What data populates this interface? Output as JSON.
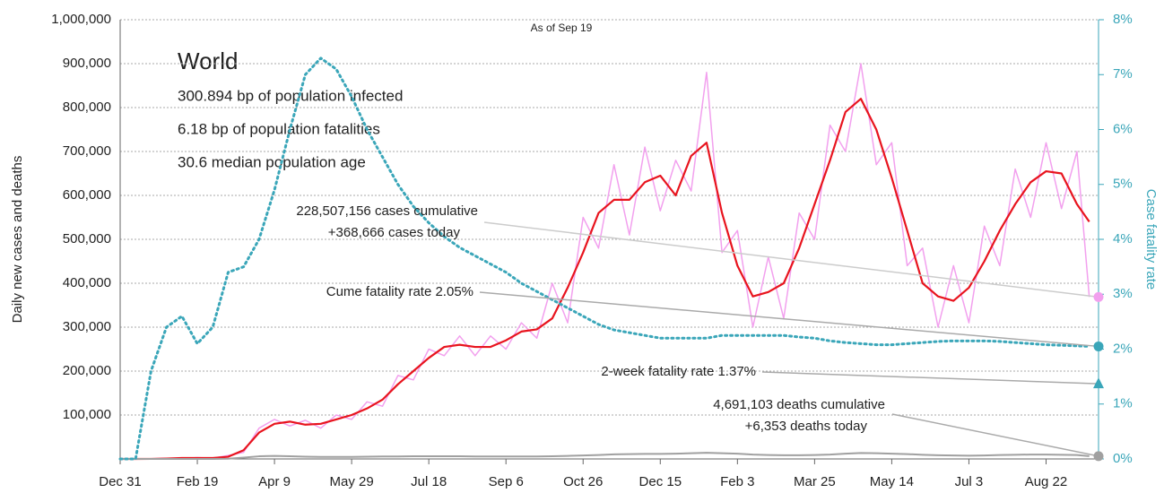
{
  "chart_data": {
    "type": "line",
    "subtitle": "As of Sep 19",
    "ylabel": "Daily new cases and deaths",
    "y2label": "Case fatality rate",
    "info": {
      "title": "World",
      "lines": [
        "300.894 bp of population infected",
        "6.18 bp of population fatalities",
        "30.6 median population age"
      ]
    },
    "x": [
      0,
      10,
      20,
      30,
      40,
      50,
      60,
      70,
      80,
      90,
      100,
      110,
      120,
      130,
      140,
      150,
      160,
      170,
      180,
      190,
      200,
      210,
      220,
      230,
      240,
      250,
      260,
      270,
      280,
      290,
      300,
      310,
      320,
      330,
      340,
      350,
      360,
      370,
      380,
      390,
      400,
      410,
      420,
      430,
      440,
      450,
      460,
      470,
      480,
      490,
      500,
      510,
      520,
      530,
      540,
      550,
      560,
      570,
      580,
      590,
      600,
      610,
      620,
      628
    ],
    "xlim": [
      0,
      634
    ],
    "xticks": [
      {
        "value": 0,
        "label": "Dec 31"
      },
      {
        "value": 50,
        "label": "Feb 19"
      },
      {
        "value": 100,
        "label": "Apr 9"
      },
      {
        "value": 150,
        "label": "May 29"
      },
      {
        "value": 200,
        "label": "Jul 18"
      },
      {
        "value": 250,
        "label": "Sep 6"
      },
      {
        "value": 300,
        "label": "Oct 26"
      },
      {
        "value": 350,
        "label": "Dec 15"
      },
      {
        "value": 400,
        "label": "Feb 3"
      },
      {
        "value": 450,
        "label": "Mar 25"
      },
      {
        "value": 500,
        "label": "May 14"
      },
      {
        "value": 550,
        "label": "Jul 3"
      },
      {
        "value": 600,
        "label": "Aug 22"
      }
    ],
    "ylim": [
      0,
      1000000
    ],
    "yticks": [
      {
        "value": 100000,
        "label": "100,000"
      },
      {
        "value": 200000,
        "label": "200,000"
      },
      {
        "value": 300000,
        "label": "300,000"
      },
      {
        "value": 400000,
        "label": "400,000"
      },
      {
        "value": 500000,
        "label": "500,000"
      },
      {
        "value": 600000,
        "label": "600,000"
      },
      {
        "value": 700000,
        "label": "700,000"
      },
      {
        "value": 800000,
        "label": "800,000"
      },
      {
        "value": 900000,
        "label": "900,000"
      },
      {
        "value": 1000000,
        "label": "1,000,000"
      }
    ],
    "y2lim": [
      0,
      8
    ],
    "y2ticks": [
      {
        "value": 0,
        "label": "0%"
      },
      {
        "value": 1,
        "label": "1%"
      },
      {
        "value": 2,
        "label": "2%"
      },
      {
        "value": 3,
        "label": "3%"
      },
      {
        "value": 4,
        "label": "4%"
      },
      {
        "value": 5,
        "label": "5%"
      },
      {
        "value": 6,
        "label": "6%"
      },
      {
        "value": 7,
        "label": "7%"
      },
      {
        "value": 8,
        "label": "8%"
      }
    ],
    "grid": true,
    "series": [
      {
        "color": "#f2a0ee",
        "width": 1.5,
        "values": [
          0,
          0,
          200,
          1500,
          1000,
          3000,
          1500,
          8000,
          15000,
          70000,
          90000,
          75000,
          88000,
          70000,
          100000,
          90000,
          130000,
          120000,
          190000,
          180000,
          250000,
          235000,
          280000,
          235000,
          280000,
          250000,
          310000,
          275000,
          400000,
          310000,
          550000,
          480000,
          670000,
          510000,
          710000,
          565000,
          680000,
          610000,
          880000,
          470000,
          520000,
          300000,
          460000,
          320000,
          560000,
          500000,
          760000,
          700000,
          900000,
          670000,
          720000,
          440000,
          480000,
          300000,
          440000,
          310000,
          530000,
          440000,
          660000,
          550000,
          720000,
          570000,
          700000,
          368666
        ]
      },
      {
        "color": "#e8141e",
        "width": 2.2,
        "values": [
          0,
          0,
          100,
          800,
          2000,
          2000,
          2000,
          5000,
          20000,
          60000,
          80000,
          85000,
          78000,
          80000,
          90000,
          100000,
          115000,
          135000,
          170000,
          200000,
          230000,
          255000,
          260000,
          255000,
          255000,
          270000,
          290000,
          295000,
          320000,
          390000,
          470000,
          560000,
          590000,
          590000,
          630000,
          645000,
          600000,
          690000,
          720000,
          560000,
          440000,
          370000,
          380000,
          400000,
          480000,
          580000,
          680000,
          790000,
          820000,
          750000,
          640000,
          520000,
          400000,
          370000,
          360000,
          390000,
          450000,
          520000,
          580000,
          630000,
          655000,
          650000,
          580000,
          540000
        ]
      },
      {
        "color": "#a0a0a0",
        "width": 2,
        "values": [
          0,
          0,
          0,
          0,
          0,
          0,
          100,
          500,
          3000,
          6000,
          7000,
          6000,
          5000,
          4500,
          4500,
          4500,
          5000,
          5500,
          5500,
          6000,
          6000,
          6000,
          6000,
          5500,
          5500,
          5500,
          5500,
          5500,
          6000,
          7000,
          8000,
          9000,
          10500,
          11000,
          11500,
          11500,
          12000,
          13000,
          14000,
          13000,
          12000,
          10000,
          9000,
          8500,
          8500,
          9000,
          10000,
          12000,
          13500,
          13000,
          12000,
          11000,
          9500,
          8500,
          8000,
          7500,
          8000,
          9000,
          9500,
          10000,
          10000,
          9500,
          9000,
          6353
        ]
      },
      {
        "color": "#3aa6b9",
        "width": 3,
        "style": "dotted",
        "axis": "y2",
        "values": [
          0,
          0,
          1.6,
          2.4,
          2.6,
          2.1,
          2.4,
          3.4,
          3.5,
          4.0,
          4.9,
          6.0,
          7.0,
          7.3,
          7.1,
          6.6,
          6.0,
          5.5,
          5.0,
          4.6,
          4.3,
          4.05,
          3.85,
          3.7,
          3.55,
          3.4,
          3.2,
          3.05,
          2.9,
          2.75,
          2.6,
          2.45,
          2.35,
          2.3,
          2.25,
          2.2,
          2.2,
          2.2,
          2.2,
          2.25,
          2.25,
          2.25,
          2.25,
          2.25,
          2.22,
          2.2,
          2.15,
          2.12,
          2.1,
          2.08,
          2.08,
          2.1,
          2.12,
          2.14,
          2.15,
          2.15,
          2.15,
          2.14,
          2.12,
          2.1,
          2.08,
          2.07,
          2.06,
          2.05
        ]
      }
    ],
    "annotations": [
      {
        "lines": [
          "228,507,156 cases cumulative",
          "+368,666 cases today"
        ],
        "value": 368666,
        "marker": "circle",
        "color": "#f2a0ee",
        "line_color": "#cccccc"
      },
      {
        "lines": [
          "Cume fatality rate 2.05%"
        ],
        "value": 2.05,
        "axis": "y2",
        "marker": "circle",
        "color": "#3aa6b9",
        "line_color": "#aaaaaa"
      },
      {
        "lines": [
          "2-week fatality rate 1.37%"
        ],
        "value": 1.37,
        "axis": "y2",
        "marker": "triangle",
        "color": "#3aa6b9",
        "line_color": "#aaaaaa"
      },
      {
        "lines": [
          "4,691,103 deaths cumulative",
          "+6,353 deaths today"
        ],
        "value": 6353,
        "marker": "circle",
        "color": "#a0a0a0",
        "line_color": "#aaaaaa"
      }
    ]
  }
}
